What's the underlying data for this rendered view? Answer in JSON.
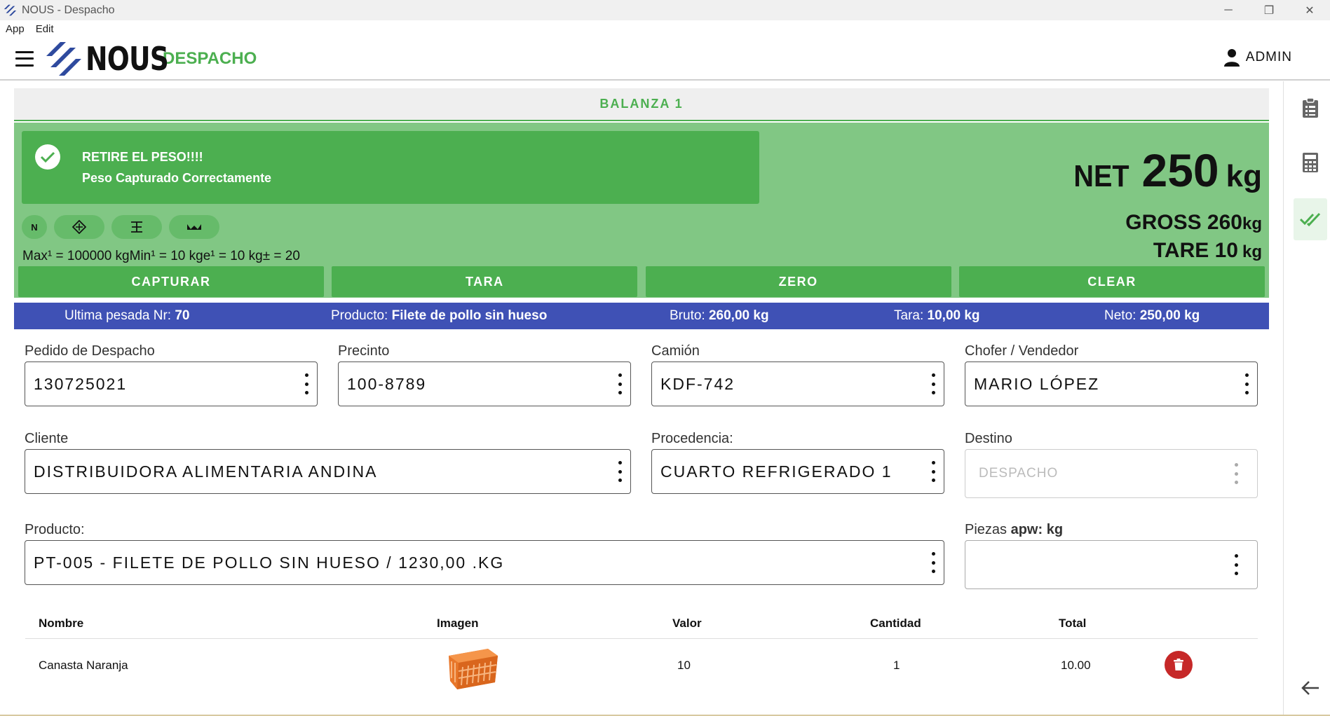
{
  "window": {
    "title": "NOUS - Despacho",
    "menu": [
      "App",
      "Edit"
    ],
    "controls": {
      "minimize": "─",
      "restore": "❐",
      "close": "✕"
    }
  },
  "header": {
    "logo_text": "NOUS",
    "section": "DESPACHO",
    "user": "ADMIN"
  },
  "rail": {
    "icons": [
      "clipboard-icon",
      "calculator-icon",
      "double-check-icon",
      "arrow-back-icon"
    ]
  },
  "scale": {
    "name": "BALANZA 1",
    "alert_title": "RETIRE EL PESO!!!!",
    "alert_message": "Peso Capturado Correctamente",
    "chip_n": "N",
    "spec": "Max¹ = 100000 kgMin¹ = 10 kge¹ = 10 kg± = 20",
    "net_label": "NET",
    "net_value": "250",
    "net_unit": "kg",
    "gross_label": "GROSS 260",
    "gross_unit": "kg",
    "tare_label": "TARE 10",
    "tare_unit": "kg",
    "buttons": {
      "capture": "CAPTURAR",
      "tare": "TARA",
      "zero": "ZERO",
      "clear": "CLEAR"
    },
    "colors": {
      "primary": "#4caf50",
      "light": "#81c784",
      "chip": "#66bb6a"
    }
  },
  "last_weighing": {
    "nr_label": "Ultima pesada Nr:",
    "nr_value": "70",
    "product_label": "Producto:",
    "product_value": "Filete de pollo sin hueso",
    "gross_label": "Bruto:",
    "gross_value": "260,00 kg",
    "tare_label": "Tara:",
    "tare_value": "10,00 kg",
    "net_label": "Neto:",
    "net_value": "250,00 kg",
    "color": "#3f51b5"
  },
  "form": {
    "pedido": {
      "label": "Pedido de Despacho",
      "value": "130725021"
    },
    "precinto": {
      "label": "Precinto",
      "value": "100-8789"
    },
    "camion": {
      "label": "Camión",
      "value": "KDF-742"
    },
    "chofer": {
      "label": "Chofer / Vendedor",
      "value": "MARIO LÓPEZ"
    },
    "cliente": {
      "label": "Cliente",
      "value": "DISTRIBUIDORA ALIMENTARIA ANDINA"
    },
    "procedencia": {
      "label": "Procedencia:",
      "value": "CUARTO REFRIGERADO 1"
    },
    "destino": {
      "label": "Destino",
      "value": "DESPACHO"
    },
    "producto": {
      "label": "Producto:",
      "value": "PT-005 - FILETE DE POLLO SIN HUESO / 1230,00 .KG"
    },
    "piezas": {
      "label": "Piezas",
      "label_bold": "apw: kg",
      "value": ""
    }
  },
  "table": {
    "headers": {
      "nombre": "Nombre",
      "imagen": "Imagen",
      "valor": "Valor",
      "cantidad": "Cantidad",
      "total": "Total"
    },
    "rows": [
      {
        "nombre": "Canasta Naranja",
        "valor": "10",
        "cantidad": "1",
        "total": "10.00"
      }
    ],
    "delete_color": "#c62828"
  }
}
